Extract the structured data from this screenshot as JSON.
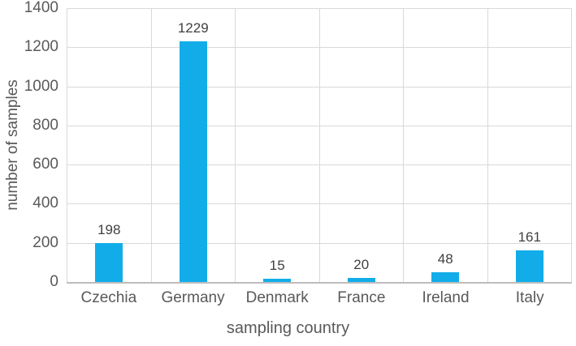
{
  "chart_data": {
    "type": "bar",
    "title": "",
    "categories": [
      "Czechia",
      "Germany",
      "Denmark",
      "France",
      "Ireland",
      "Italy"
    ],
    "values": [
      198,
      1229,
      15,
      20,
      48,
      161
    ],
    "data_labels": [
      "198",
      "1229",
      "15",
      "20",
      "48",
      "161"
    ],
    "xlabel": "sampling country",
    "ylabel": "number of samples",
    "ylim": [
      0,
      1400
    ],
    "y_tick_step": 200,
    "y_ticks": [
      "1400",
      "1200",
      "1000",
      "800",
      "600",
      "400",
      "200",
      "0"
    ],
    "grid": "horizontal major gridlines plus vertical category-boundary lines",
    "legend_position": "none",
    "colors": {
      "bar": "#12ADE9",
      "gridline": "#D9D9D9",
      "axis_line": "#BDBDBD",
      "axis_text": "#595959",
      "data_label_text": "#404040"
    }
  }
}
